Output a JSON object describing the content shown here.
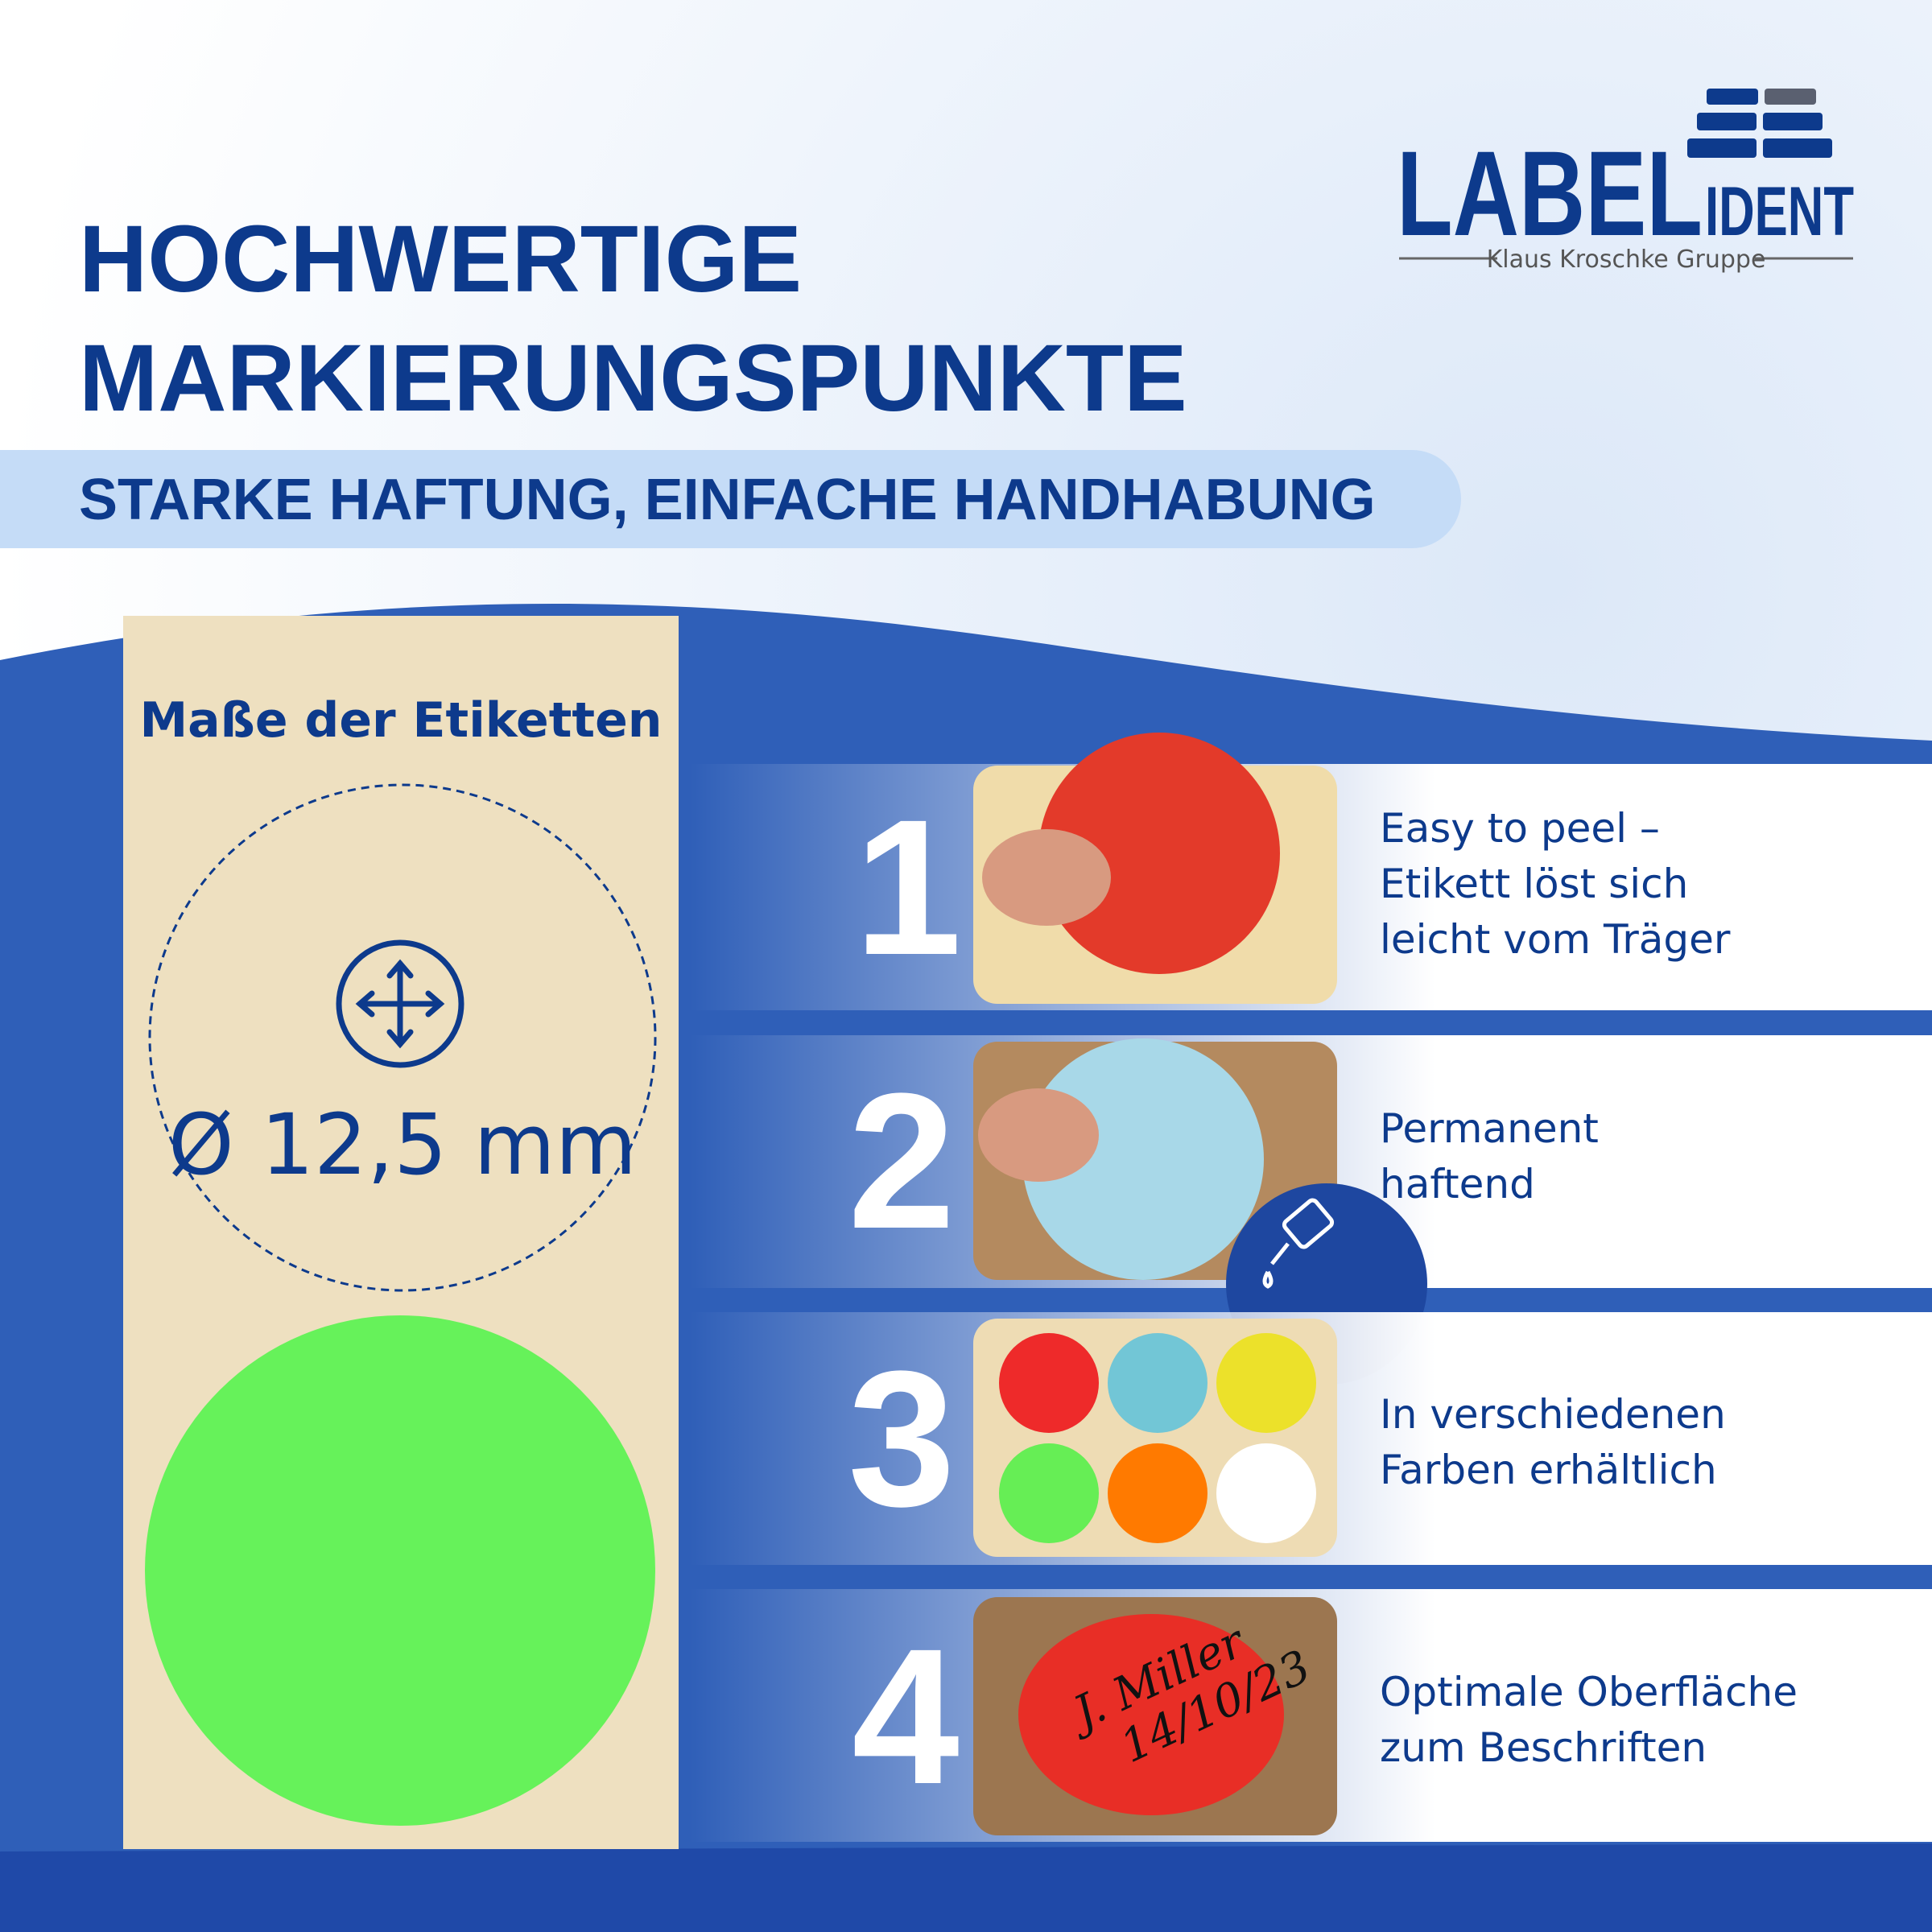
{
  "header": {
    "title": [
      "HOCHWERTIGE",
      "MARKIERUNGSPUNKTE"
    ],
    "subtitle": "STARKE HAFTUNG, EINFACHE HANDHABUNG"
  },
  "logo": {
    "name": "LABEL",
    "suffix": "IDENT",
    "tagline": "Klaus Kroschke Gruppe"
  },
  "dimensions": {
    "heading": "Maße der Etiketten",
    "size": "Ø 12,5 mm"
  },
  "features": [
    {
      "number": "1",
      "lines": [
        "Easy to peel –",
        "Etikett löst sich",
        "leicht vom Träger"
      ]
    },
    {
      "number": "2",
      "lines": [
        "Permanent",
        "haftend"
      ]
    },
    {
      "number": "3",
      "lines": [
        "In verschiedenen",
        "Farben erhältlich"
      ]
    },
    {
      "number": "4",
      "lines": [
        "Optimale Oberfläche",
        "zum Beschriften"
      ]
    }
  ],
  "photo_text": [
    "J. Miller",
    "14/10/23"
  ]
}
